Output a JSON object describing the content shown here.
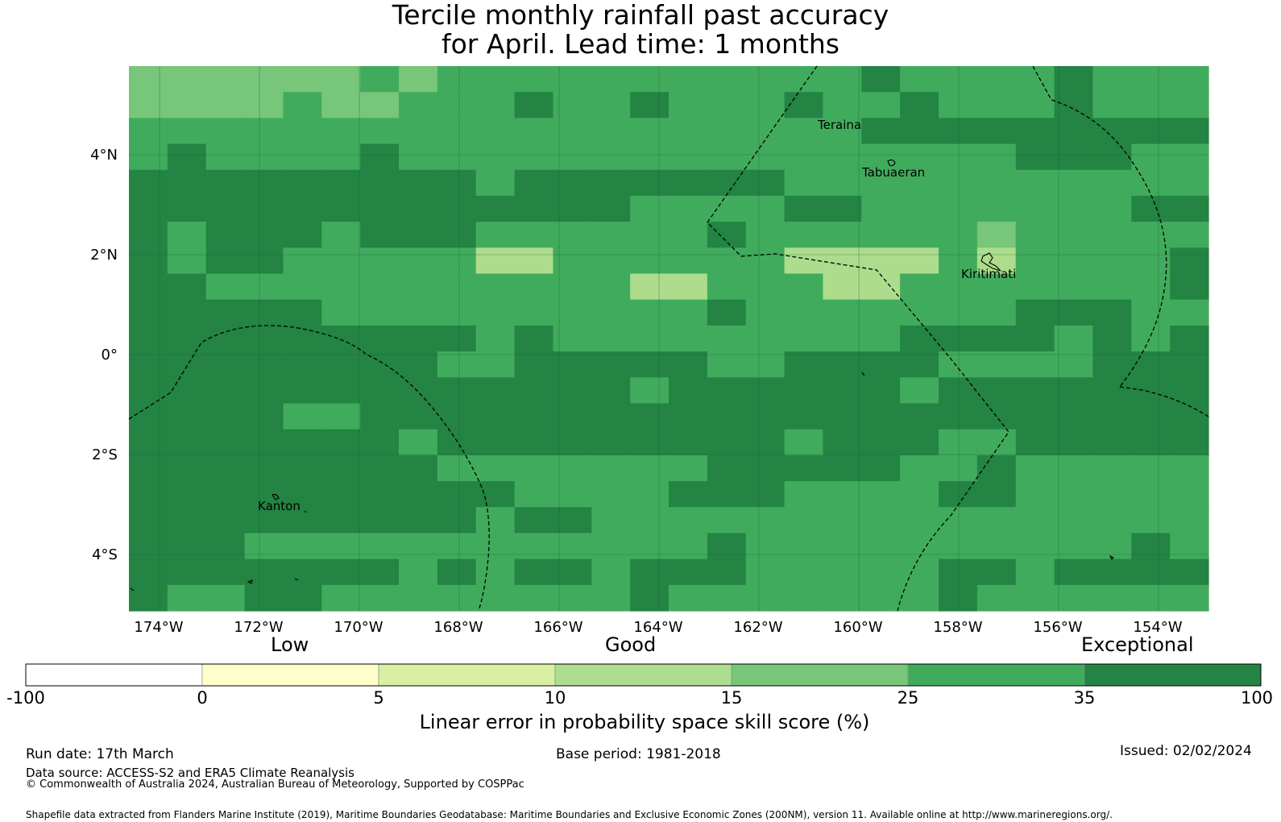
{
  "title": {
    "line1": "Tercile monthly rainfall past accuracy",
    "line2": "for April. Lead time: 1 months"
  },
  "map": {
    "lat_labels": [
      "4°N",
      "2°N",
      "0°",
      "2°S",
      "4°S"
    ],
    "lon_labels": [
      "174°W",
      "172°W",
      "170°W",
      "168°W",
      "166°W",
      "164°W",
      "162°W",
      "160°W",
      "158°W",
      "156°W",
      "154°W"
    ],
    "places": {
      "teraina": "Teraina",
      "tabuaeran": "Tabuaeran",
      "kiritimati": "Kiritimati",
      "kanton": "Kanton"
    },
    "colors": {
      "c5": "#c9e89f",
      "c10": "#acdc8c",
      "c15": "#78c679",
      "c25": "#41ab5d",
      "c35": "#238443"
    }
  },
  "colorbar": {
    "categories": {
      "low": "Low",
      "good": "Good",
      "exceptional": "Exceptional"
    },
    "ticks": [
      "-100",
      "0",
      "5",
      "10",
      "15",
      "25",
      "35",
      "100"
    ],
    "colors": [
      "#ffffff",
      "#ffffcc",
      "#d9f0a3",
      "#addd8e",
      "#78c679",
      "#41ab5d",
      "#238443"
    ],
    "caption": "Linear error in probability space skill score (%)"
  },
  "footer": {
    "run_date": "Run date: 17th March",
    "base_period": "Base period: 1981-2018",
    "issued": "Issued: 02/02/2024",
    "data_source": "Data source: ACCESS-S2 and ERA5 Climate Reanalysis",
    "copyright": "© Commonwealth of Australia 2024, Australian Bureau of Meteorology, Supported by COSPPac",
    "shapefile": "Shapefile data extracted from Flanders Marine Institute (2019), Maritime Boundaries Geodatabase: Maritime Boundaries and Exclusive Economic Zones (200NM), version 11. Available online at http://www.marineregions.org/."
  }
}
